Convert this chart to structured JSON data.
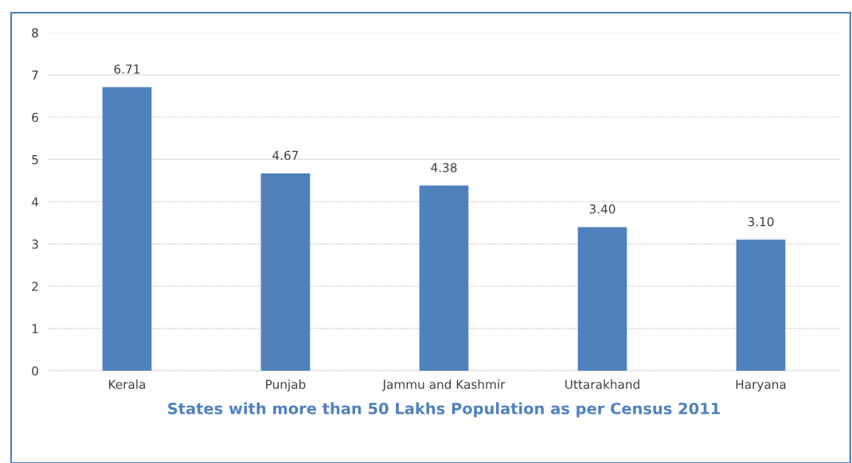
{
  "chart_data": {
    "type": "bar",
    "categories": [
      "Kerala",
      "Punjab",
      "Jammu and Kashmir",
      "Uttarakhand",
      "Haryana"
    ],
    "values": [
      6.71,
      4.67,
      4.38,
      3.4,
      3.1
    ],
    "value_labels": [
      "6.71",
      "4.67",
      "4.38",
      "3.40",
      "3.10"
    ],
    "color": "#4f81bd",
    "xlabel": "States with more than 50 Lakhs Population as per Census 2011",
    "ylim": [
      0,
      8
    ],
    "yticks": [
      0,
      1,
      2,
      3,
      4,
      5,
      6,
      7,
      8
    ],
    "grid": "y",
    "legend": false
  }
}
